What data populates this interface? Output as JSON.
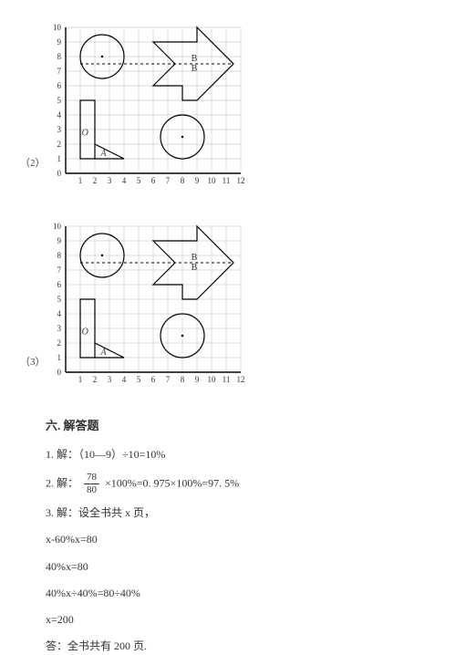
{
  "figures": {
    "label2": "（2）",
    "label3": "（3）",
    "grid": {
      "cell_size": 16,
      "cols": 12,
      "rows": 10,
      "xticks": [
        "1",
        "2",
        "3",
        "4",
        "5",
        "6",
        "7",
        "8",
        "9",
        "10",
        "11",
        "12"
      ],
      "yticks": [
        "0",
        "1",
        "2",
        "3",
        "4",
        "5",
        "6",
        "7",
        "8",
        "9",
        "10"
      ],
      "origin_label": "O",
      "grid_color": "#cfcfcf",
      "axis_color": "#000000",
      "stroke_color": "#000000",
      "tick_fontsize": 9,
      "label_A": "A",
      "label_B": "B",
      "label_B2": "B"
    }
  },
  "section6": {
    "title": "六. 解答题",
    "q1": "1. 解：（10—9）÷10=10%",
    "q2_prefix": "2. 解：",
    "q2_frac_num": "78",
    "q2_frac_den": "80",
    "q2_suffix": " ×100%=0. 975×100%=97. 5%",
    "q3_l1": "3. 解：设全书共 x 页，",
    "q3_l2": "x-60%x=80",
    "q3_l3": "40%x=80",
    "q3_l4": "40%x÷40%=80÷40%",
    "q3_l5": "x=200",
    "q3_l6": "答：全书共有 200 页."
  }
}
